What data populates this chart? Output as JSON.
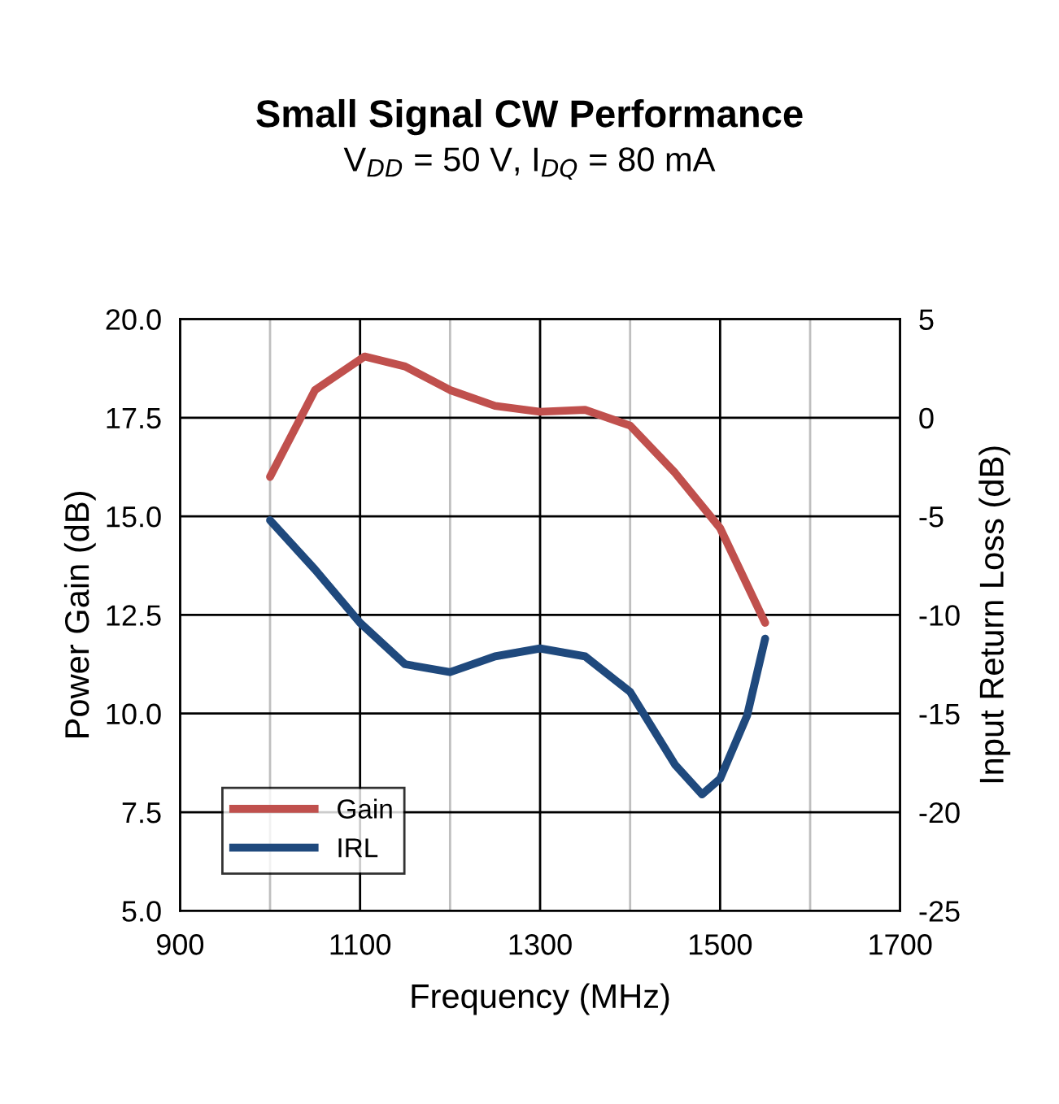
{
  "chart_data": {
    "type": "line",
    "title": "Small Signal CW Performance",
    "subtitle": "V$_{DD}$ = 50 V, I$_{DQ}$ = 80 mA",
    "xlabel": "Frequency (MHz)",
    "ylabel": "Power Gain (dB)",
    "y2label": "Input Return Loss (dB)",
    "xlim": [
      900,
      1700
    ],
    "xticks": [
      900,
      {
        "value": 1000,
        "label": null
      },
      1100,
      {
        "value": 1200,
        "label": null
      },
      1300,
      {
        "value": 1400,
        "label": null
      },
      1500,
      {
        "value": 1600,
        "label": null
      },
      1700
    ],
    "ylim": [
      5,
      20
    ],
    "yticks": [
      {
        "value": 5,
        "label": "5.0"
      },
      7.5,
      {
        "value": 10,
        "label": "10.0"
      },
      12.5,
      {
        "value": 15,
        "label": "15.0"
      },
      17.5,
      {
        "value": 20,
        "label": "20.0"
      }
    ],
    "y2lim": [
      -25,
      5
    ],
    "y2ticks": [
      -25,
      -20,
      -15,
      -10,
      -5,
      0,
      5
    ],
    "grid": true,
    "legend": "bottom left",
    "marker": "none",
    "line_style": "solid",
    "series": [
      {
        "name": "Gain",
        "color": "#c0504d",
        "x": [
          1000,
          1050,
          1105,
          1150,
          1200,
          1250,
          1300,
          1350,
          1400,
          1450,
          1500,
          1550
        ],
        "values": [
          16.0,
          18.2,
          19.05,
          18.8,
          18.2,
          17.8,
          17.65,
          17.7,
          17.3,
          16.1,
          14.7,
          12.3
        ]
      },
      {
        "name": "IRL",
        "color": "#1f497d",
        "axis": "y2",
        "x": [
          1000,
          1050,
          1100,
          1150,
          1200,
          1250,
          1300,
          1350,
          1400,
          1450,
          1480,
          1500,
          1530,
          1550
        ],
        "values": [
          -5.2,
          -7.7,
          -10.4,
          -12.5,
          -12.9,
          -12.1,
          -11.7,
          -12.1,
          -13.9,
          -17.6,
          -19.1,
          -18.3,
          -15.1,
          -11.2
        ]
      }
    ]
  }
}
